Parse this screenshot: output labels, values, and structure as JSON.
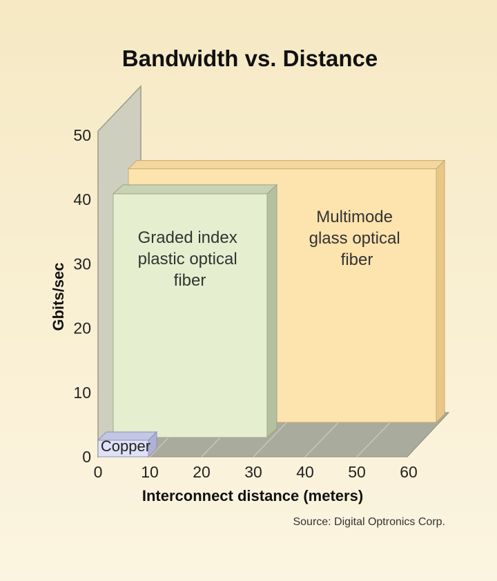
{
  "chart_data": {
    "type": "bar",
    "title": "Bandwidth vs. Distance",
    "xlabel": "Interconnect distance (meters)",
    "ylabel": "Gbits/sec",
    "xlim": [
      0,
      60
    ],
    "ylim": [
      0,
      50
    ],
    "x_ticks": [
      "0",
      "10",
      "20",
      "30",
      "40",
      "50",
      "60"
    ],
    "y_ticks": [
      "0",
      "10",
      "20",
      "30",
      "40",
      "50"
    ],
    "series": [
      {
        "name": "Multimode glass optical fiber",
        "label_lines": [
          "Multimode",
          "glass optical",
          "fiber"
        ],
        "x_range": [
          0,
          60
        ],
        "value": 45,
        "color": "#fde3ad"
      },
      {
        "name": "Graded index plastic optical fiber",
        "label_lines": [
          "Graded index",
          "plastic optical",
          "fiber"
        ],
        "x_range": [
          0,
          30
        ],
        "value": 41,
        "color": "#e5efcf"
      },
      {
        "name": "Copper",
        "label_lines": [
          "Copper"
        ],
        "x_range": [
          0,
          10
        ],
        "value": 1.5,
        "color": "#dfe1f7"
      }
    ],
    "source": "Source: Digital Optronics Corp."
  }
}
